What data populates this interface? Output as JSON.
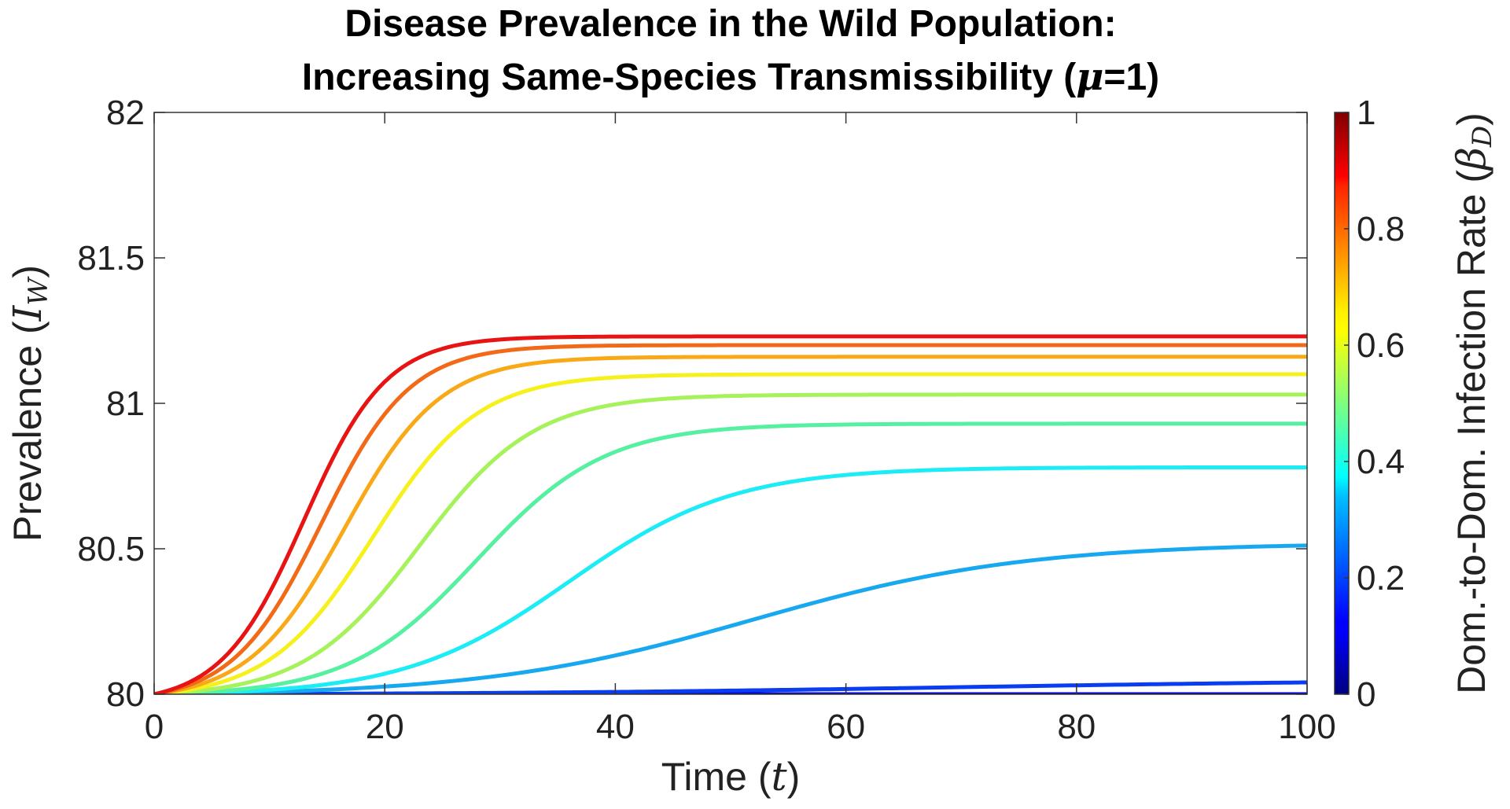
{
  "chart_data": {
    "type": "line",
    "title_line1": "Disease Prevalence in the Wild Population:",
    "title_line2_prefix": "Increasing Same-Species Transmissibility (",
    "title_line2_symbol": "μ",
    "title_line2_suffix": "=1)",
    "xlabel_prefix": "Time (",
    "xlabel_symbol": "t",
    "xlabel_suffix": ")",
    "ylabel_prefix": "Prevalence (",
    "ylabel_symbol": "I",
    "ylabel_subscript": "W",
    "ylabel_suffix": ")",
    "colorbar_label_prefix": "Dom.-to-Dom. Infection Rate (",
    "colorbar_label_symbol": "β",
    "colorbar_label_subscript": "D",
    "colorbar_label_suffix": ")",
    "xlim": [
      0,
      100
    ],
    "ylim": [
      80,
      82
    ],
    "xticks": [
      0,
      20,
      40,
      60,
      80,
      100
    ],
    "xtick_labels": [
      "0",
      "20",
      "40",
      "60",
      "80",
      "100"
    ],
    "yticks": [
      80,
      80.5,
      81,
      81.5,
      82
    ],
    "ytick_labels": [
      "80",
      "80.5",
      "81",
      "81.5",
      "82"
    ],
    "colorbar_range": [
      0,
      1
    ],
    "colorbar_ticks": [
      0,
      0.2,
      0.4,
      0.6,
      0.8,
      1
    ],
    "colorbar_tick_labels": [
      "0",
      "0.2",
      "0.4",
      "0.6",
      "0.8",
      "1"
    ],
    "colormap": "jet",
    "series": [
      {
        "name": "beta_D = 0.1",
        "beta_D": 0.1,
        "start": 80,
        "plateau": 80.0,
        "midpoint": 150,
        "rate": 0.04,
        "color": "#0000d8"
      },
      {
        "name": "beta_D = 0.2",
        "beta_D": 0.2,
        "start": 80,
        "plateau": 80.05,
        "midpoint": 70,
        "rate": 0.05,
        "color": "#0a3cf0"
      },
      {
        "name": "beta_D = 0.3",
        "beta_D": 0.3,
        "start": 80,
        "plateau": 80.52,
        "midpoint": 52,
        "rate": 0.085,
        "color": "#18a8f0"
      },
      {
        "name": "beta_D = 0.4",
        "beta_D": 0.4,
        "start": 80,
        "plateau": 80.78,
        "midpoint": 36,
        "rate": 0.14,
        "color": "#1cecf5"
      },
      {
        "name": "beta_D = 0.5",
        "beta_D": 0.5,
        "start": 80,
        "plateau": 80.93,
        "midpoint": 28,
        "rate": 0.18,
        "color": "#55f0a0"
      },
      {
        "name": "beta_D = 0.6",
        "beta_D": 0.6,
        "start": 80,
        "plateau": 81.03,
        "midpoint": 23,
        "rate": 0.2,
        "color": "#a6f25a"
      },
      {
        "name": "beta_D = 0.7",
        "beta_D": 0.7,
        "start": 80,
        "plateau": 81.1,
        "midpoint": 19,
        "rate": 0.22,
        "color": "#f6f01c"
      },
      {
        "name": "beta_D = 0.8",
        "beta_D": 0.8,
        "start": 80,
        "plateau": 81.16,
        "midpoint": 16.5,
        "rate": 0.24,
        "color": "#f9a818"
      },
      {
        "name": "beta_D = 0.9",
        "beta_D": 0.9,
        "start": 80,
        "plateau": 81.2,
        "midpoint": 14.5,
        "rate": 0.26,
        "color": "#f26a18"
      },
      {
        "name": "beta_D = 1.0",
        "beta_D": 1.0,
        "start": 80,
        "plateau": 81.23,
        "midpoint": 13,
        "rate": 0.28,
        "color": "#e81414"
      }
    ]
  }
}
